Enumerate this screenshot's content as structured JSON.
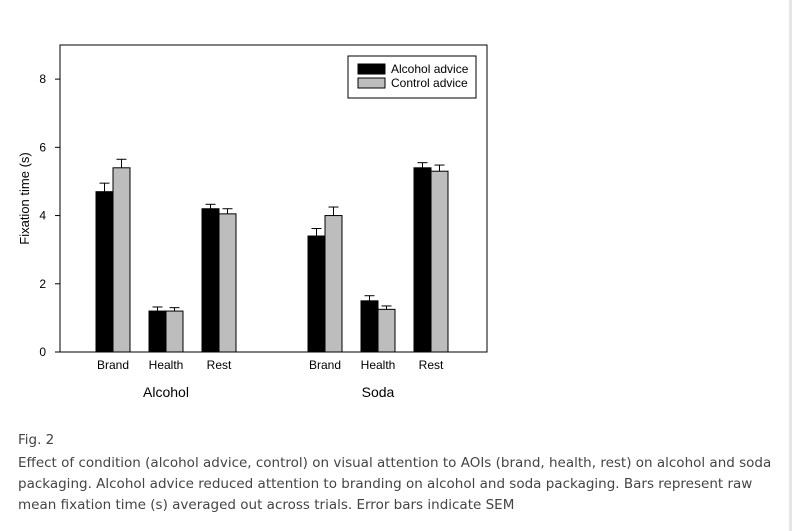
{
  "chart_data": {
    "type": "bar",
    "ylabel": "Fixation time (s)",
    "ylim": [
      0,
      9
    ],
    "yticks": [
      0,
      2,
      4,
      6,
      8
    ],
    "legend_position": "top-right",
    "groups": [
      "Alcohol",
      "Soda"
    ],
    "categories": [
      "Brand",
      "Health",
      "Rest"
    ],
    "series": [
      {
        "name": "Alcohol advice",
        "color": "#000000",
        "values": [
          [
            4.7,
            1.2,
            4.2
          ],
          [
            3.4,
            1.5,
            5.4
          ]
        ],
        "sem": [
          [
            0.25,
            0.12,
            0.13
          ],
          [
            0.22,
            0.15,
            0.15
          ]
        ]
      },
      {
        "name": "Control advice",
        "color": "#bdbdbd",
        "values": [
          [
            5.4,
            1.2,
            4.05
          ],
          [
            4.0,
            1.25,
            5.3
          ]
        ],
        "sem": [
          [
            0.25,
            0.1,
            0.15
          ],
          [
            0.25,
            0.1,
            0.18
          ]
        ]
      }
    ]
  },
  "figure": {
    "label": "Fig. 2",
    "caption": "Effect of condition (alcohol advice, control) on visual attention to AOIs (brand, health, rest) on alcohol and soda packaging. Alcohol advice reduced attention to branding on alcohol and soda packaging. Bars represent raw mean fixation time (s) averaged out across trials. Error bars indicate SEM"
  }
}
